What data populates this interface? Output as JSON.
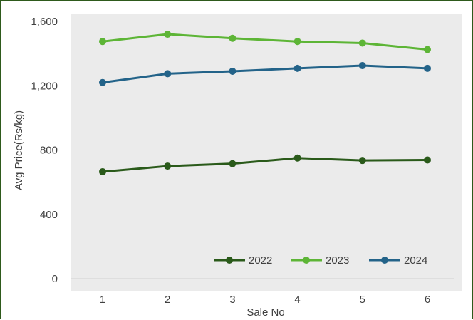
{
  "chart_data": {
    "type": "line",
    "title": "",
    "xlabel": "Sale No",
    "ylabel": "Avg Price(Rs/kg)",
    "categories": [
      "1",
      "2",
      "3",
      "4",
      "5",
      "6"
    ],
    "ylim": [
      0,
      1600
    ],
    "yticks": [
      0,
      400,
      800,
      1200,
      1600
    ],
    "ytick_labels": [
      "0",
      "400",
      "800",
      "1,200",
      "1,600"
    ],
    "grid": false,
    "legend_position": "bottom-right",
    "plot_background": "#ebebeb",
    "series": [
      {
        "name": "2022",
        "color": "#2a5a1a",
        "values": [
          665,
          700,
          715,
          750,
          735,
          738
        ]
      },
      {
        "name": "2023",
        "color": "#5db536",
        "values": [
          1475,
          1520,
          1495,
          1475,
          1465,
          1425
        ]
      },
      {
        "name": "2024",
        "color": "#236389",
        "values": [
          1220,
          1275,
          1290,
          1308,
          1325,
          1308
        ]
      }
    ]
  }
}
